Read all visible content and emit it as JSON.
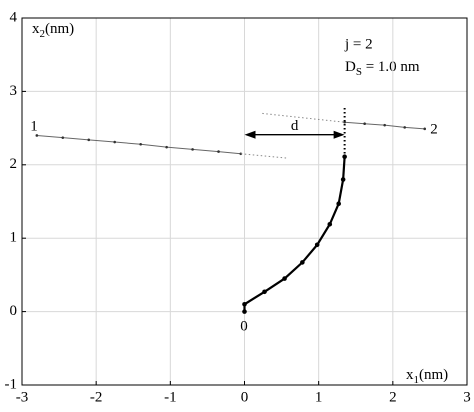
{
  "chart_data": {
    "type": "line",
    "xlabel": {
      "main": "x",
      "sub": "1",
      "unit": "(nm)"
    },
    "ylabel": {
      "main": "x",
      "sub": "2",
      "unit": "(nm)"
    },
    "xlim": [
      -3,
      3
    ],
    "ylim": [
      -1,
      4
    ],
    "xticks": [
      -3,
      -2,
      -1,
      0,
      1,
      2,
      3
    ],
    "yticks": [
      -1,
      0,
      1,
      2,
      3,
      4
    ],
    "grid": true,
    "series": [
      {
        "x": [
          -2.8,
          -2.45,
          -2.1,
          -1.75,
          -1.4,
          -1.05,
          -0.7,
          -0.35,
          -0.05
        ],
        "y": [
          2.4,
          2.37,
          2.34,
          2.31,
          2.28,
          2.24,
          2.21,
          2.18,
          2.15
        ],
        "color": "#666666",
        "width": 1,
        "style": "solid",
        "markers": true
      },
      {
        "x": [
          -0.05,
          0.58
        ],
        "y": [
          2.15,
          2.09
        ],
        "color": "#888888",
        "width": 1,
        "style": "dotted",
        "markers": false
      },
      {
        "x": [
          1.35,
          1.62,
          1.89,
          2.16,
          2.43
        ],
        "y": [
          2.58,
          2.56,
          2.54,
          2.51,
          2.49
        ],
        "color": "#666666",
        "width": 1,
        "style": "solid",
        "markers": true
      },
      {
        "x": [
          0.24,
          1.35
        ],
        "y": [
          2.7,
          2.58
        ],
        "color": "#888888",
        "width": 1,
        "style": "dotted",
        "markers": false
      },
      {
        "x": [
          1.35,
          1.35
        ],
        "y": [
          2.1,
          2.78
        ],
        "color": "#000000",
        "width": 2,
        "style": "dotted",
        "markers": false
      },
      {
        "x": [
          0,
          0,
          0.27,
          0.54,
          0.78,
          0.98,
          1.15,
          1.27,
          1.33,
          1.35
        ],
        "y": [
          0,
          0.1,
          0.27,
          0.45,
          0.67,
          0.91,
          1.19,
          1.47,
          1.8,
          2.11
        ],
        "color": "#000000",
        "width": 2.2,
        "style": "solid",
        "markers": true
      }
    ],
    "arrow": {
      "x": [
        0,
        1.35
      ],
      "y": 2.41,
      "label": "d"
    },
    "line_labels": [
      "1",
      "2",
      "0"
    ],
    "annotations": [
      {
        "text": "j = 2"
      },
      {
        "main": "D",
        "sub": "S",
        "rest": " = 1.0 nm"
      }
    ]
  }
}
